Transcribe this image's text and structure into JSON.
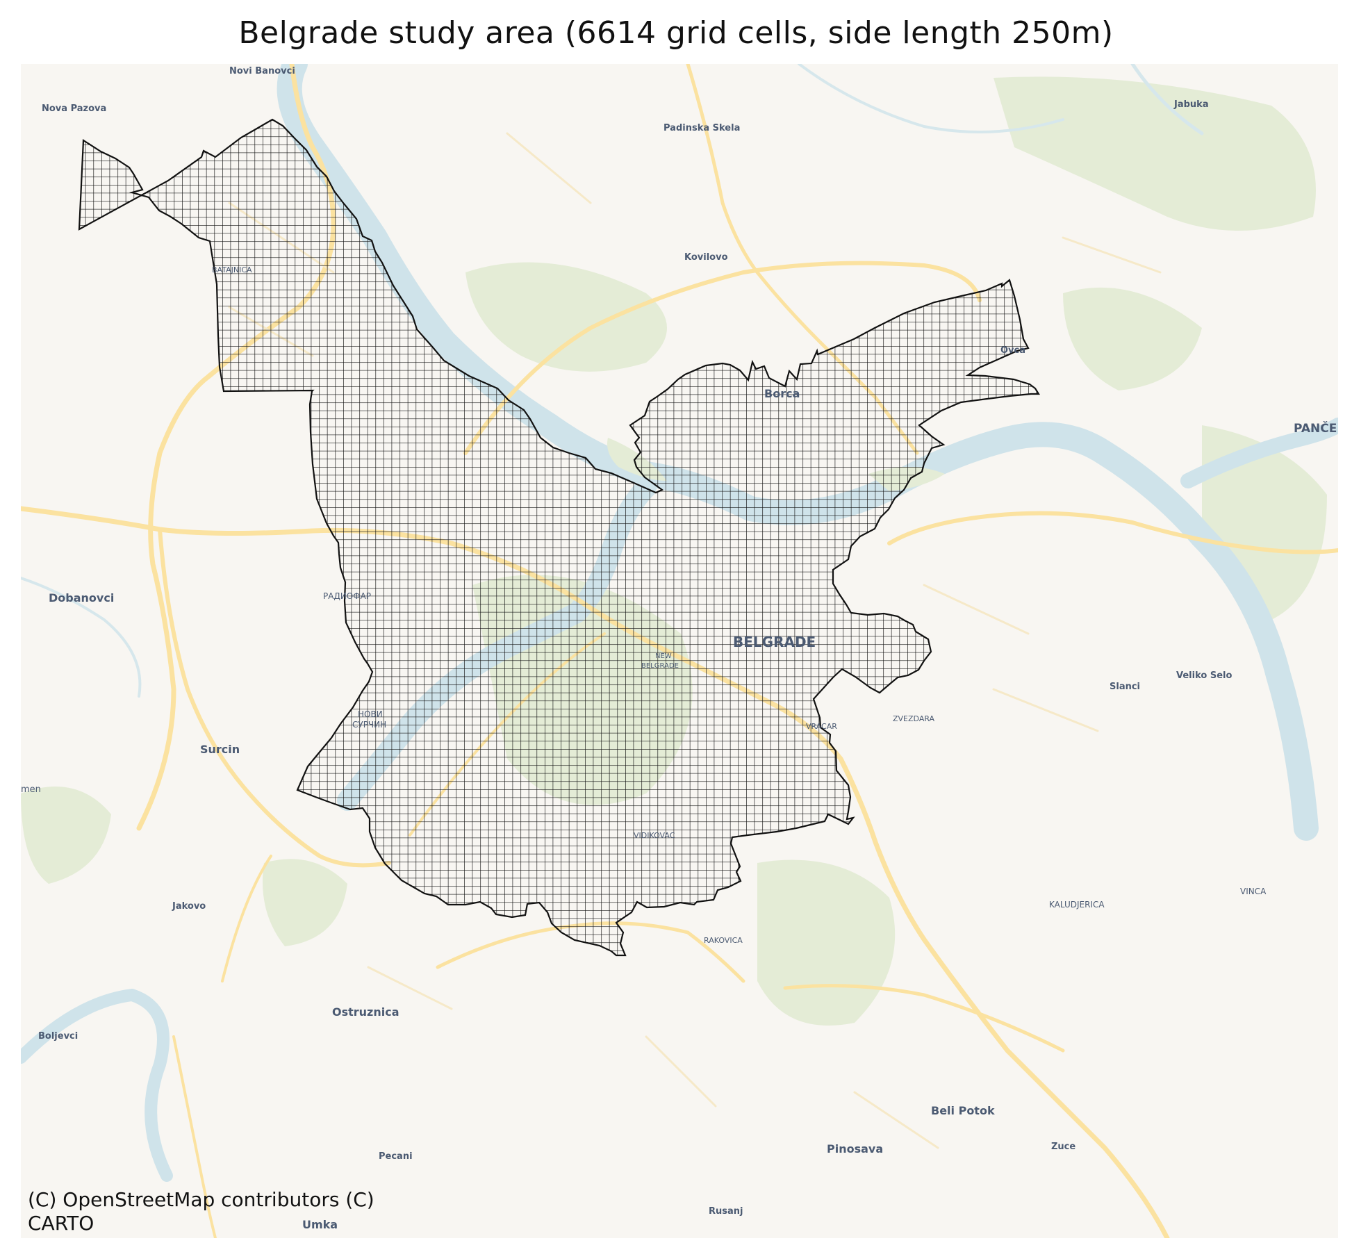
{
  "title": "Belgrade study area (6614 grid cells, side length 250m)",
  "attribution": "(C) OpenStreetMap contributors (C)\nCARTO",
  "colors": {
    "background": "#f8f6f2",
    "water": "#cfe3ea",
    "green": "#e4ecd6",
    "road_major": "#fbe2a0",
    "road_minor": "#f6e9c8",
    "grid_line": "#111111"
  },
  "grid": {
    "cells": 6614,
    "side_length": "250m"
  },
  "places": [
    {
      "id": "novi-banovci",
      "label": "Novi Banovci",
      "size": "small"
    },
    {
      "id": "nova-pazova",
      "label": "Nova Pazova",
      "size": "small"
    },
    {
      "id": "padinska-skela",
      "label": "Padinska Skela",
      "size": "small"
    },
    {
      "id": "jabuka",
      "label": "Jabuka",
      "size": "small"
    },
    {
      "id": "batajnica",
      "label": "BATAJNICA",
      "size": "small"
    },
    {
      "id": "kovilovo",
      "label": "Kovilovo",
      "size": "small"
    },
    {
      "id": "ovca",
      "label": "Ovca",
      "size": "small"
    },
    {
      "id": "borca",
      "label": "Borca",
      "size": "medium"
    },
    {
      "id": "pancevo",
      "label": "PANČE",
      "size": "medium"
    },
    {
      "id": "dobanovci",
      "label": "Dobanovci",
      "size": "medium"
    },
    {
      "id": "radiofar",
      "label": "РАДИОФАР",
      "size": "small"
    },
    {
      "id": "belgrade",
      "label": "BELGRADE",
      "size": "large"
    },
    {
      "id": "new-belgrade-1",
      "label": "NEW",
      "size": "tiny"
    },
    {
      "id": "new-belgrade-2",
      "label": "BELGRADE",
      "size": "tiny"
    },
    {
      "id": "novi-surcin-1",
      "label": "НОВИ",
      "size": "small"
    },
    {
      "id": "novi-surcin-2",
      "label": "СУРЧИН",
      "size": "small"
    },
    {
      "id": "surcin",
      "label": "Surcin",
      "size": "medium"
    },
    {
      "id": "zemun",
      "label": "men",
      "size": "small"
    },
    {
      "id": "vracar",
      "label": "VRACAR",
      "size": "small"
    },
    {
      "id": "zvezdara",
      "label": "ZVEZDARA",
      "size": "small"
    },
    {
      "id": "slanci",
      "label": "Slanci",
      "size": "small"
    },
    {
      "id": "veliko-selo",
      "label": "Veliko Selo",
      "size": "small"
    },
    {
      "id": "vidikovac",
      "label": "VIDIKOVAC",
      "size": "small"
    },
    {
      "id": "jakovo",
      "label": "Jakovo",
      "size": "small"
    },
    {
      "id": "kaludjerica",
      "label": "KALUDJERICA",
      "size": "small"
    },
    {
      "id": "vinca",
      "label": "VINCA",
      "size": "small"
    },
    {
      "id": "rakovica",
      "label": "RAKOVICA",
      "size": "small"
    },
    {
      "id": "ostruznica",
      "label": "Ostruznica",
      "size": "medium"
    },
    {
      "id": "boljevci",
      "label": "Boljevci",
      "size": "small"
    },
    {
      "id": "beli-potok",
      "label": "Beli Potok",
      "size": "medium"
    },
    {
      "id": "pinosava",
      "label": "Pinosava",
      "size": "medium"
    },
    {
      "id": "pecani",
      "label": "Pecani",
      "size": "small"
    },
    {
      "id": "zuce",
      "label": "Zuce",
      "size": "small"
    },
    {
      "id": "rusanj",
      "label": "Rusanj",
      "size": "small"
    },
    {
      "id": "umka",
      "label": "Umka",
      "size": "medium"
    }
  ]
}
